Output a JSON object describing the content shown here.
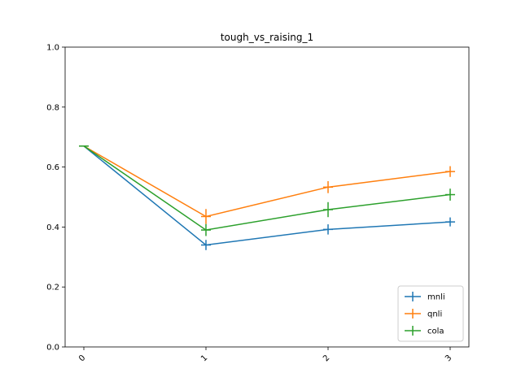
{
  "chart_data": {
    "type": "line",
    "title": "tough_vs_raising_1",
    "xlabel": "",
    "ylabel": "",
    "x": [
      0,
      1,
      2,
      3
    ],
    "x_tick_labels": [
      "0",
      "1",
      "2",
      "3"
    ],
    "y_tick_labels": [
      "0.0",
      "0.2",
      "0.4",
      "0.6",
      "0.8",
      "1.0"
    ],
    "ylim": [
      0.0,
      1.0
    ],
    "grid": false,
    "legend_position": "lower-right",
    "series": [
      {
        "name": "mnli",
        "color": "#1f77b4",
        "values": [
          0.67,
          0.34,
          0.392,
          0.417
        ],
        "errors": [
          0.0,
          0.017,
          0.017,
          0.015
        ]
      },
      {
        "name": "qnli",
        "color": "#ff7f0e",
        "values": [
          0.67,
          0.435,
          0.533,
          0.585
        ],
        "errors": [
          0.0,
          0.025,
          0.02,
          0.018
        ]
      },
      {
        "name": "cola",
        "color": "#2ca02c",
        "values": [
          0.67,
          0.39,
          0.458,
          0.508
        ],
        "errors": [
          0.0,
          0.02,
          0.025,
          0.02
        ]
      }
    ]
  }
}
